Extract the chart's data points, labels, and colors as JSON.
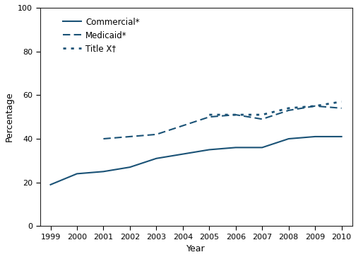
{
  "commercial_years": [
    1999,
    2000,
    2001,
    2002,
    2003,
    2004,
    2005,
    2006,
    2007,
    2008,
    2009,
    2010
  ],
  "commercial_values": [
    19,
    24,
    25,
    27,
    31,
    33,
    35,
    36,
    36,
    40,
    41,
    41
  ],
  "medicaid_years": [
    2001,
    2002,
    2003,
    2004,
    2005,
    2006,
    2007,
    2008,
    2009,
    2010
  ],
  "medicaid_values": [
    40,
    41,
    42,
    46,
    50,
    51,
    49,
    53,
    55,
    54
  ],
  "titlex_years": [
    2005,
    2006,
    2007,
    2008,
    2009,
    2010
  ],
  "titlex_values": [
    51,
    51,
    51,
    54,
    55,
    57
  ],
  "color": "#1a5276",
  "ylabel": "Percentage",
  "xlabel": "Year",
  "ylim": [
    0,
    100
  ],
  "xlim_min": 1999,
  "xlim_max": 2010,
  "yticks": [
    0,
    20,
    40,
    60,
    80,
    100
  ],
  "xticks": [
    1999,
    2000,
    2001,
    2002,
    2003,
    2004,
    2005,
    2006,
    2007,
    2008,
    2009,
    2010
  ],
  "legend_commercial": "Commercial*",
  "legend_medicaid": "Medicaid*",
  "legend_titlex": "Title X†",
  "linewidth": 1.5,
  "tick_labelsize": 8,
  "axis_labelsize": 9,
  "legend_fontsize": 8.5
}
